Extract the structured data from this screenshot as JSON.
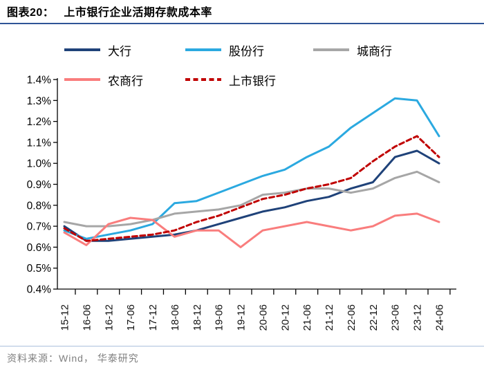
{
  "header": {
    "figure_label": "图表20：",
    "title": "上市银行企业活期存款成本率"
  },
  "footer": {
    "source": "资料来源：Wind， 华泰研究"
  },
  "colors": {
    "title_underline": "#2F5496",
    "footer_divider": "#ABC0DC",
    "axis": "#000000"
  },
  "chart_data": {
    "type": "line",
    "title": "上市银行企业活期存款成本率",
    "unit": "percent",
    "grid": false,
    "legend_position": "top",
    "x_categories": [
      "15-12",
      "16-06",
      "16-12",
      "17-06",
      "17-12",
      "18-06",
      "18-12",
      "19-06",
      "19-12",
      "20-06",
      "20-12",
      "21-06",
      "21-12",
      "22-06",
      "22-12",
      "23-06",
      "23-12",
      "24-06"
    ],
    "y_axis": {
      "min": 0.4,
      "max": 1.4,
      "step": 0.1,
      "tick_labels": [
        "0.4%",
        "0.5%",
        "0.6%",
        "0.7%",
        "0.8%",
        "0.9%",
        "1.0%",
        "1.1%",
        "1.2%",
        "1.3%",
        "1.4%"
      ]
    },
    "series": [
      {
        "name": "大行",
        "slug": "major-banks",
        "color": "#1F4279",
        "style": "solid",
        "values": [
          0.7,
          0.63,
          0.63,
          0.64,
          0.65,
          0.66,
          0.68,
          0.71,
          0.74,
          0.77,
          0.79,
          0.82,
          0.84,
          0.88,
          0.91,
          1.03,
          1.06,
          1.0
        ]
      },
      {
        "name": "股份行",
        "slug": "joint-stock-banks",
        "color": "#2BA9E0",
        "style": "solid",
        "values": [
          0.68,
          0.64,
          0.66,
          0.68,
          0.71,
          0.81,
          0.82,
          0.86,
          0.9,
          0.94,
          0.97,
          1.03,
          1.08,
          1.17,
          1.24,
          1.31,
          1.3,
          1.13
        ]
      },
      {
        "name": "城商行",
        "slug": "city-commercial-banks",
        "color": "#A6A6A6",
        "style": "solid",
        "values": [
          0.72,
          0.7,
          0.7,
          0.71,
          0.73,
          0.76,
          0.77,
          0.78,
          0.8,
          0.85,
          0.86,
          0.88,
          0.88,
          0.86,
          0.88,
          0.93,
          0.96,
          0.91
        ]
      },
      {
        "name": "农商行",
        "slug": "rural-commercial-banks",
        "color": "#F97D7D",
        "style": "solid",
        "values": [
          0.67,
          0.61,
          0.71,
          0.74,
          0.73,
          0.65,
          0.68,
          0.68,
          0.6,
          0.68,
          0.7,
          0.72,
          0.7,
          0.68,
          0.7,
          0.75,
          0.76,
          0.72
        ]
      },
      {
        "name": "上市银行",
        "slug": "listed-banks",
        "color": "#C00000",
        "style": "dashed",
        "values": [
          0.69,
          0.63,
          0.64,
          0.65,
          0.66,
          0.68,
          0.72,
          0.75,
          0.79,
          0.83,
          0.85,
          0.88,
          0.9,
          0.93,
          1.01,
          1.08,
          1.13,
          1.03
        ]
      }
    ]
  }
}
